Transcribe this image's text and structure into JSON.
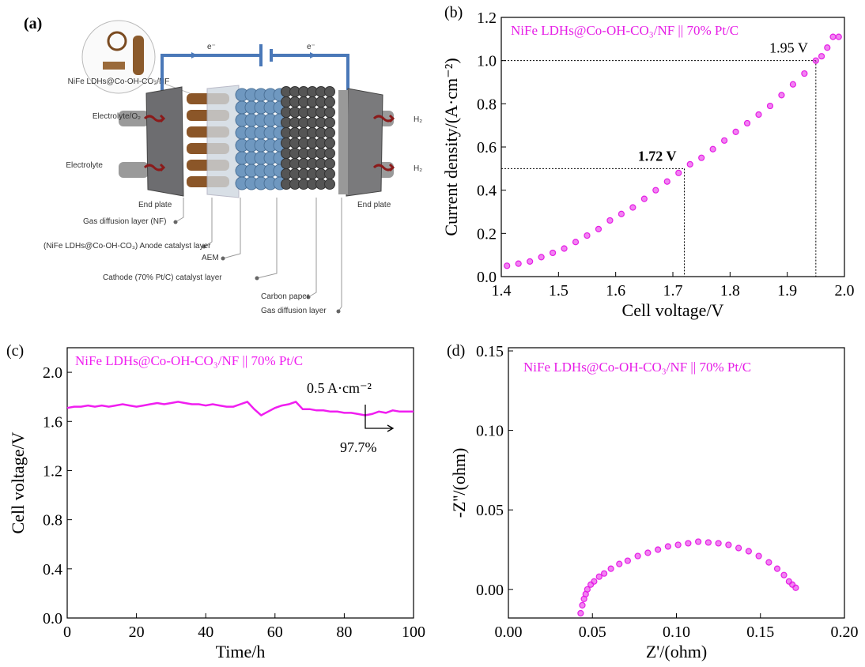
{
  "diagram": {
    "panel_label": "(a)",
    "inset_label": "NiFe LDHs@Co-OH-CO₃/NF",
    "electron_labels": [
      "e⁻",
      "e⁻"
    ],
    "left_labels": [
      "Electrolyte/O₂",
      "Electrolyte"
    ],
    "right_labels": [
      "H₂",
      "H₂"
    ],
    "end_plates": [
      "End plate",
      "End plate"
    ],
    "layer_labels": [
      "Gas diffusion layer (NF)",
      "(NiFe LDHs@Co-OH-CO₃) Anode catalyst layer",
      "AEM",
      "Cathode (70% Pt/C) catalyst layer",
      "Carbon paper",
      "Gas diffusion layer"
    ]
  },
  "chart_data": [
    {
      "type": "scatter",
      "panel_label": "(b)",
      "x_label": "Cell voltage/V",
      "y_label": "Current density/(A·cm⁻²)",
      "x": [
        1.41,
        1.43,
        1.45,
        1.47,
        1.49,
        1.51,
        1.53,
        1.55,
        1.57,
        1.59,
        1.61,
        1.63,
        1.65,
        1.67,
        1.69,
        1.71,
        1.73,
        1.75,
        1.77,
        1.79,
        1.81,
        1.83,
        1.85,
        1.87,
        1.89,
        1.91,
        1.93,
        1.95,
        1.96,
        1.97,
        1.98,
        1.99
      ],
      "series": [
        {
          "name": "NiFe LDHs@Co-OH-CO₃/NF || 70% Pt/C",
          "color": "#e61ee6",
          "values": [
            0.05,
            0.06,
            0.07,
            0.09,
            0.11,
            0.13,
            0.16,
            0.19,
            0.22,
            0.26,
            0.29,
            0.32,
            0.36,
            0.4,
            0.44,
            0.48,
            0.52,
            0.55,
            0.59,
            0.63,
            0.67,
            0.71,
            0.75,
            0.79,
            0.84,
            0.89,
            0.94,
            1.0,
            1.02,
            1.06,
            1.11,
            1.11
          ]
        }
      ],
      "xlim": [
        1.4,
        2.0
      ],
      "ylim": [
        0,
        1.2
      ],
      "xticks": [
        1.4,
        1.5,
        1.6,
        1.7,
        1.8,
        1.9,
        {
          "value": 2,
          "label": "2.0"
        }
      ],
      "yticks": [
        {
          "value": 0,
          "label": "0.0"
        },
        0.2,
        0.4,
        0.6,
        0.8,
        {
          "value": 1,
          "label": "1.0"
        },
        1.2
      ],
      "reference_lines": [
        {
          "x": 1.72,
          "y": 0.5,
          "label": "1.72 V"
        },
        {
          "x": 1.95,
          "y": 1.0,
          "label": "1.95 V"
        }
      ]
    },
    {
      "type": "line",
      "panel_label": "(c)",
      "x_label": "Time/h",
      "y_label": "Cell voltage/V",
      "x": [
        0,
        2,
        4,
        6,
        8,
        10,
        12,
        14,
        16,
        18,
        20,
        22,
        24,
        26,
        28,
        30,
        32,
        34,
        36,
        38,
        40,
        42,
        44,
        46,
        48,
        50,
        52,
        54,
        56,
        58,
        60,
        62,
        64,
        66,
        68,
        70,
        72,
        74,
        76,
        78,
        80,
        82,
        84,
        86,
        88,
        90,
        92,
        94,
        96,
        98,
        100
      ],
      "series": [
        {
          "name": "NiFe LDHs@Co-OH-CO₃/NF || 70% Pt/C",
          "color": "#f01ef0",
          "values": [
            1.71,
            1.72,
            1.72,
            1.73,
            1.72,
            1.73,
            1.72,
            1.73,
            1.74,
            1.73,
            1.72,
            1.73,
            1.74,
            1.75,
            1.74,
            1.75,
            1.76,
            1.75,
            1.74,
            1.74,
            1.73,
            1.74,
            1.73,
            1.72,
            1.72,
            1.74,
            1.76,
            1.7,
            1.65,
            1.68,
            1.71,
            1.73,
            1.74,
            1.76,
            1.7,
            1.7,
            1.69,
            1.69,
            1.68,
            1.68,
            1.67,
            1.67,
            1.66,
            1.65,
            1.66,
            1.68,
            1.67,
            1.69,
            1.68,
            1.68,
            1.68
          ]
        }
      ],
      "xlim": [
        0,
        100
      ],
      "ylim": [
        0,
        2.2
      ],
      "xticks": [
        0,
        20,
        40,
        60,
        80,
        100
      ],
      "yticks": [
        {
          "value": 0,
          "label": "0.0"
        },
        0.4,
        0.8,
        1.2,
        1.6,
        {
          "value": 2,
          "label": "2.0"
        }
      ],
      "annotations": [
        "0.5 A·cm⁻²",
        "97.7%"
      ]
    },
    {
      "type": "scatter",
      "panel_label": "(d)",
      "x_label": "Z'/(ohm)",
      "y_label": "-Z''/(ohm)",
      "x": [
        0.043,
        0.044,
        0.045,
        0.046,
        0.047,
        0.049,
        0.051,
        0.054,
        0.057,
        0.061,
        0.066,
        0.071,
        0.077,
        0.083,
        0.089,
        0.095,
        0.101,
        0.107,
        0.113,
        0.119,
        0.125,
        0.131,
        0.137,
        0.143,
        0.149,
        0.155,
        0.16,
        0.164,
        0.167,
        0.169,
        0.171
      ],
      "series": [
        {
          "name": "NiFe LDHs@Co-OH-CO₃/NF || 70% Pt/C",
          "color": "#e61ee6",
          "values": [
            -0.015,
            -0.01,
            -0.006,
            -0.003,
            0.0,
            0.003,
            0.005,
            0.008,
            0.01,
            0.013,
            0.016,
            0.018,
            0.021,
            0.023,
            0.025,
            0.027,
            0.028,
            0.029,
            0.03,
            0.0295,
            0.029,
            0.028,
            0.026,
            0.024,
            0.021,
            0.017,
            0.013,
            0.009,
            0.005,
            0.003,
            0.001
          ]
        }
      ],
      "xlim": [
        0,
        0.2
      ],
      "ylim": [
        -0.018,
        0.152
      ],
      "xticks": [
        {
          "value": 0,
          "label": "0.00"
        },
        0.05,
        {
          "value": 0.1,
          "label": "0.10"
        },
        0.15,
        {
          "value": 0.2,
          "label": "0.20"
        }
      ],
      "yticks": [
        {
          "value": 0,
          "label": "0.00"
        },
        0.05,
        {
          "value": 0.1,
          "label": "0.10"
        },
        0.15
      ]
    }
  ]
}
